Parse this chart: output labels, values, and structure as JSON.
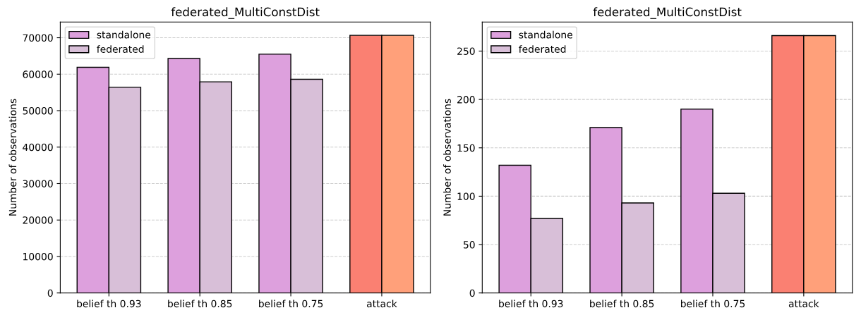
{
  "chart_data": [
    {
      "type": "bar",
      "title": "federated_MultiConstDist",
      "ylabel": "Number of observations",
      "categories": [
        "belief th 0.93",
        "belief th 0.85",
        "belief th 0.75",
        "attack"
      ],
      "series": [
        {
          "name": "standalone",
          "color": "#dda0dd",
          "colors": [
            "#dda0dd",
            "#dda0dd",
            "#dda0dd",
            "#fa8072"
          ],
          "values": [
            61900,
            64300,
            65500,
            70650
          ]
        },
        {
          "name": "federated",
          "color": "#d8bfd8",
          "colors": [
            "#d8bfd8",
            "#d8bfd8",
            "#d8bfd8",
            "#ffa07a"
          ],
          "values": [
            56400,
            57900,
            58600,
            70650
          ]
        }
      ],
      "ylim": [
        0,
        74300
      ],
      "yticks": [
        0,
        10000,
        20000,
        30000,
        40000,
        50000,
        60000,
        70000
      ],
      "grid": "y",
      "legend": "top left"
    },
    {
      "type": "bar",
      "title": "federated_MultiConstDist",
      "ylabel": "Number of observations",
      "categories": [
        "belief th 0.93",
        "belief th 0.85",
        "belief th 0.75",
        "attack"
      ],
      "series": [
        {
          "name": "standalone",
          "color": "#dda0dd",
          "colors": [
            "#dda0dd",
            "#dda0dd",
            "#dda0dd",
            "#fa8072"
          ],
          "values": [
            132,
            171,
            190,
            266
          ]
        },
        {
          "name": "federated",
          "color": "#d8bfd8",
          "colors": [
            "#d8bfd8",
            "#d8bfd8",
            "#d8bfd8",
            "#ffa07a"
          ],
          "values": [
            77,
            93,
            103,
            266
          ]
        }
      ],
      "ylim": [
        0,
        280
      ],
      "yticks": [
        0,
        50,
        100,
        150,
        200,
        250
      ],
      "grid": "y",
      "legend": "top left"
    }
  ]
}
